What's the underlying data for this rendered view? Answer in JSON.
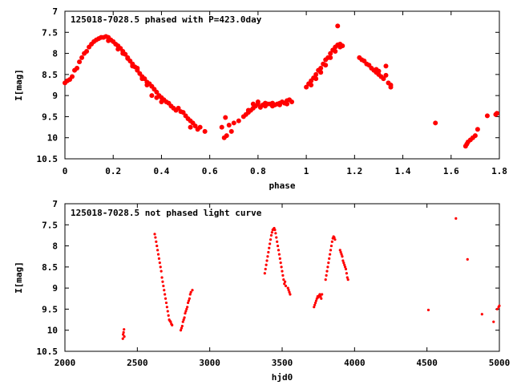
{
  "chart_data": [
    {
      "type": "scatter",
      "title": "125018-7028.5 phased with P=423.0day",
      "xlabel": "phase",
      "ylabel": "I[mag]",
      "xlim": [
        0,
        1.8
      ],
      "ylim": [
        10.5,
        7
      ],
      "y_inverted": true,
      "x_ticks": [
        0,
        0.2,
        0.4,
        0.6,
        0.8,
        1,
        1.2,
        1.4,
        1.6,
        1.8
      ],
      "x_tick_labels": [
        "0",
        "0.2",
        "0.4",
        "0.6",
        "0.8",
        "1",
        "1.2",
        "1.4",
        "1.6",
        "1.8"
      ],
      "y_ticks": [
        7,
        7.5,
        8,
        8.5,
        9,
        9.5,
        10,
        10.5
      ],
      "y_tick_labels": [
        "7",
        "7.5",
        "8",
        "8.5",
        "9",
        "9.5",
        "10",
        "10.5"
      ],
      "marker_color": "#ff0000",
      "marker_size": "large",
      "points": [
        [
          0.0,
          8.7
        ],
        [
          0.01,
          8.65
        ],
        [
          0.02,
          8.62
        ],
        [
          0.03,
          8.55
        ],
        [
          0.04,
          8.4
        ],
        [
          0.05,
          8.35
        ],
        [
          0.06,
          8.2
        ],
        [
          0.07,
          8.1
        ],
        [
          0.08,
          8.0
        ],
        [
          0.09,
          7.95
        ],
        [
          0.1,
          7.85
        ],
        [
          0.11,
          7.78
        ],
        [
          0.12,
          7.72
        ],
        [
          0.13,
          7.68
        ],
        [
          0.14,
          7.65
        ],
        [
          0.15,
          7.62
        ],
        [
          0.16,
          7.62
        ],
        [
          0.17,
          7.6
        ],
        [
          0.18,
          7.62
        ],
        [
          0.19,
          7.68
        ],
        [
          0.2,
          7.72
        ],
        [
          0.21,
          7.78
        ],
        [
          0.22,
          7.82
        ],
        [
          0.23,
          7.88
        ],
        [
          0.24,
          7.95
        ],
        [
          0.25,
          8.02
        ],
        [
          0.26,
          8.1
        ],
        [
          0.27,
          8.18
        ],
        [
          0.28,
          8.25
        ],
        [
          0.29,
          8.32
        ],
        [
          0.3,
          8.4
        ],
        [
          0.31,
          8.48
        ],
        [
          0.32,
          8.55
        ],
        [
          0.33,
          8.6
        ],
        [
          0.34,
          8.68
        ],
        [
          0.35,
          8.72
        ],
        [
          0.36,
          8.78
        ],
        [
          0.37,
          8.85
        ],
        [
          0.38,
          8.92
        ],
        [
          0.39,
          9.0
        ],
        [
          0.4,
          9.05
        ],
        [
          0.41,
          9.1
        ],
        [
          0.42,
          9.15
        ],
        [
          0.43,
          9.18
        ],
        [
          0.44,
          9.25
        ],
        [
          0.45,
          9.3
        ],
        [
          0.46,
          9.35
        ],
        [
          0.47,
          9.3
        ],
        [
          0.48,
          9.38
        ],
        [
          0.49,
          9.4
        ],
        [
          0.5,
          9.48
        ],
        [
          0.51,
          9.55
        ],
        [
          0.52,
          9.6
        ],
        [
          0.53,
          9.65
        ],
        [
          0.54,
          9.72
        ],
        [
          0.55,
          9.8
        ],
        [
          0.56,
          9.75
        ],
        [
          0.58,
          9.85
        ],
        [
          0.52,
          9.75
        ],
        [
          0.36,
          9.0
        ],
        [
          0.38,
          9.05
        ],
        [
          0.4,
          9.15
        ],
        [
          0.28,
          8.3
        ],
        [
          0.3,
          8.35
        ],
        [
          0.18,
          7.7
        ],
        [
          0.22,
          7.9
        ],
        [
          0.24,
          8.0
        ],
        [
          0.26,
          8.12
        ],
        [
          0.32,
          8.6
        ],
        [
          0.34,
          8.75
        ],
        [
          0.65,
          9.75
        ],
        [
          0.66,
          10.0
        ],
        [
          0.67,
          9.95
        ],
        [
          0.665,
          9.52
        ],
        [
          0.68,
          9.7
        ],
        [
          0.69,
          9.85
        ],
        [
          0.7,
          9.65
        ],
        [
          0.72,
          9.6
        ],
        [
          0.74,
          9.5
        ],
        [
          0.75,
          9.45
        ],
        [
          0.76,
          9.4
        ],
        [
          0.77,
          9.35
        ],
        [
          0.78,
          9.3
        ],
        [
          0.79,
          9.25
        ],
        [
          0.8,
          9.2
        ],
        [
          0.81,
          9.28
        ],
        [
          0.82,
          9.22
        ],
        [
          0.83,
          9.18
        ],
        [
          0.84,
          9.2
        ],
        [
          0.85,
          9.2
        ],
        [
          0.86,
          9.18
        ],
        [
          0.87,
          9.22
        ],
        [
          0.88,
          9.2
        ],
        [
          0.89,
          9.18
        ],
        [
          0.9,
          9.15
        ],
        [
          0.91,
          9.18
        ],
        [
          0.92,
          9.12
        ],
        [
          0.93,
          9.1
        ],
        [
          0.94,
          9.15
        ],
        [
          0.8,
          9.15
        ],
        [
          0.78,
          9.2
        ],
        [
          0.76,
          9.35
        ],
        [
          0.83,
          9.25
        ],
        [
          0.86,
          9.25
        ],
        [
          0.89,
          9.22
        ],
        [
          0.92,
          9.2
        ],
        [
          1.0,
          8.8
        ],
        [
          1.01,
          8.72
        ],
        [
          1.02,
          8.65
        ],
        [
          1.03,
          8.58
        ],
        [
          1.04,
          8.5
        ],
        [
          1.05,
          8.4
        ],
        [
          1.06,
          8.35
        ],
        [
          1.07,
          8.25
        ],
        [
          1.08,
          8.15
        ],
        [
          1.09,
          8.1
        ],
        [
          1.1,
          8.0
        ],
        [
          1.11,
          7.92
        ],
        [
          1.12,
          7.85
        ],
        [
          1.13,
          7.8
        ],
        [
          1.14,
          7.78
        ],
        [
          1.15,
          7.82
        ],
        [
          1.13,
          7.35
        ],
        [
          1.02,
          8.75
        ],
        [
          1.04,
          8.6
        ],
        [
          1.06,
          8.45
        ],
        [
          1.08,
          8.28
        ],
        [
          1.1,
          8.1
        ],
        [
          1.12,
          7.95
        ],
        [
          1.14,
          7.85
        ],
        [
          1.22,
          8.1
        ],
        [
          1.23,
          8.15
        ],
        [
          1.24,
          8.18
        ],
        [
          1.25,
          8.25
        ],
        [
          1.26,
          8.28
        ],
        [
          1.27,
          8.35
        ],
        [
          1.28,
          8.4
        ],
        [
          1.29,
          8.45
        ],
        [
          1.3,
          8.5
        ],
        [
          1.31,
          8.55
        ],
        [
          1.32,
          8.6
        ],
        [
          1.33,
          8.52
        ],
        [
          1.33,
          8.3
        ],
        [
          1.34,
          8.7
        ],
        [
          1.35,
          8.75
        ],
        [
          1.35,
          8.8
        ],
        [
          1.29,
          8.38
        ],
        [
          1.3,
          8.42
        ],
        [
          1.535,
          9.65
        ],
        [
          1.66,
          10.2
        ],
        [
          1.665,
          10.15
        ],
        [
          1.67,
          10.1
        ],
        [
          1.68,
          10.05
        ],
        [
          1.69,
          10.0
        ],
        [
          1.7,
          9.95
        ],
        [
          1.71,
          9.8
        ],
        [
          1.75,
          9.48
        ],
        [
          1.785,
          9.45
        ],
        [
          1.79,
          9.42
        ]
      ]
    },
    {
      "type": "scatter",
      "title": "125018-7028.5 not phased light curve",
      "xlabel": "hjd0",
      "ylabel": "I[mag]",
      "xlim": [
        2000,
        5000
      ],
      "ylim": [
        10.5,
        7
      ],
      "y_inverted": true,
      "x_ticks": [
        2000,
        2500,
        3000,
        3500,
        4000,
        4500,
        5000
      ],
      "x_tick_labels": [
        "2000",
        "2500",
        "3000",
        "3500",
        "4000",
        "4500",
        "5000"
      ],
      "y_ticks": [
        7,
        7.5,
        8,
        8.5,
        9,
        9.5,
        10,
        10.5
      ],
      "y_tick_labels": [
        "7",
        "7.5",
        "8",
        "8.5",
        "9",
        "9.5",
        "10",
        "10.5"
      ],
      "marker_color": "#ff0000",
      "marker_size": "small",
      "points": [
        [
          2400,
          10.2
        ],
        [
          2402,
          10.1
        ],
        [
          2405,
          10.05
        ],
        [
          2408,
          9.98
        ],
        [
          2410,
          10.15
        ],
        [
          2620,
          7.72
        ],
        [
          2625,
          7.8
        ],
        [
          2630,
          7.9
        ],
        [
          2635,
          8.0
        ],
        [
          2640,
          8.1
        ],
        [
          2645,
          8.2
        ],
        [
          2650,
          8.3
        ],
        [
          2655,
          8.4
        ],
        [
          2660,
          8.5
        ],
        [
          2665,
          8.6
        ],
        [
          2670,
          8.75
        ],
        [
          2675,
          8.85
        ],
        [
          2680,
          8.95
        ],
        [
          2685,
          9.05
        ],
        [
          2690,
          9.15
        ],
        [
          2695,
          9.25
        ],
        [
          2700,
          9.35
        ],
        [
          2705,
          9.45
        ],
        [
          2710,
          9.55
        ],
        [
          2715,
          9.65
        ],
        [
          2720,
          9.75
        ],
        [
          2725,
          9.78
        ],
        [
          2730,
          9.8
        ],
        [
          2735,
          9.85
        ],
        [
          2740,
          9.88
        ],
        [
          2800,
          10.0
        ],
        [
          2805,
          9.95
        ],
        [
          2810,
          9.9
        ],
        [
          2815,
          9.8
        ],
        [
          2820,
          9.75
        ],
        [
          2825,
          9.7
        ],
        [
          2830,
          9.6
        ],
        [
          2835,
          9.55
        ],
        [
          2840,
          9.5
        ],
        [
          2845,
          9.45
        ],
        [
          2850,
          9.35
        ],
        [
          2855,
          9.3
        ],
        [
          2860,
          9.25
        ],
        [
          2865,
          9.15
        ],
        [
          2870,
          9.1
        ],
        [
          2880,
          9.05
        ],
        [
          3380,
          8.65
        ],
        [
          3385,
          8.55
        ],
        [
          3390,
          8.45
        ],
        [
          3395,
          8.35
        ],
        [
          3400,
          8.25
        ],
        [
          3405,
          8.15
        ],
        [
          3410,
          8.05
        ],
        [
          3415,
          7.95
        ],
        [
          3420,
          7.85
        ],
        [
          3425,
          7.75
        ],
        [
          3430,
          7.68
        ],
        [
          3435,
          7.62
        ],
        [
          3440,
          7.6
        ],
        [
          3445,
          7.58
        ],
        [
          3450,
          7.62
        ],
        [
          3455,
          7.7
        ],
        [
          3460,
          7.8
        ],
        [
          3465,
          7.9
        ],
        [
          3470,
          8.0
        ],
        [
          3475,
          8.1
        ],
        [
          3480,
          8.2
        ],
        [
          3485,
          8.3
        ],
        [
          3490,
          8.4
        ],
        [
          3495,
          8.5
        ],
        [
          3500,
          8.6
        ],
        [
          3505,
          8.7
        ],
        [
          3510,
          8.8
        ],
        [
          3515,
          8.9
        ],
        [
          3520,
          8.85
        ],
        [
          3525,
          8.95
        ],
        [
          3540,
          9.0
        ],
        [
          3545,
          9.05
        ],
        [
          3550,
          9.1
        ],
        [
          3555,
          9.15
        ],
        [
          3720,
          9.45
        ],
        [
          3725,
          9.4
        ],
        [
          3730,
          9.35
        ],
        [
          3735,
          9.3
        ],
        [
          3740,
          9.25
        ],
        [
          3745,
          9.2
        ],
        [
          3750,
          9.22
        ],
        [
          3755,
          9.18
        ],
        [
          3760,
          9.15
        ],
        [
          3765,
          9.2
        ],
        [
          3770,
          9.25
        ],
        [
          3775,
          9.15
        ],
        [
          3800,
          8.8
        ],
        [
          3805,
          8.7
        ],
        [
          3810,
          8.6
        ],
        [
          3815,
          8.5
        ],
        [
          3820,
          8.4
        ],
        [
          3825,
          8.3
        ],
        [
          3830,
          8.2
        ],
        [
          3835,
          8.1
        ],
        [
          3840,
          8.0
        ],
        [
          3845,
          7.9
        ],
        [
          3850,
          7.82
        ],
        [
          3855,
          7.78
        ],
        [
          3860,
          7.8
        ],
        [
          3865,
          7.85
        ],
        [
          3900,
          8.1
        ],
        [
          3905,
          8.15
        ],
        [
          3910,
          8.2
        ],
        [
          3915,
          8.25
        ],
        [
          3920,
          8.35
        ],
        [
          3925,
          8.4
        ],
        [
          3930,
          8.45
        ],
        [
          3935,
          8.5
        ],
        [
          3940,
          8.55
        ],
        [
          3945,
          8.65
        ],
        [
          3950,
          8.75
        ],
        [
          3955,
          8.8
        ],
        [
          4510,
          9.52
        ],
        [
          4700,
          7.35
        ],
        [
          4780,
          8.32
        ],
        [
          4880,
          9.62
        ],
        [
          4960,
          9.8
        ],
        [
          4985,
          9.5
        ],
        [
          4995,
          9.45
        ],
        [
          5000,
          9.42
        ]
      ]
    }
  ]
}
